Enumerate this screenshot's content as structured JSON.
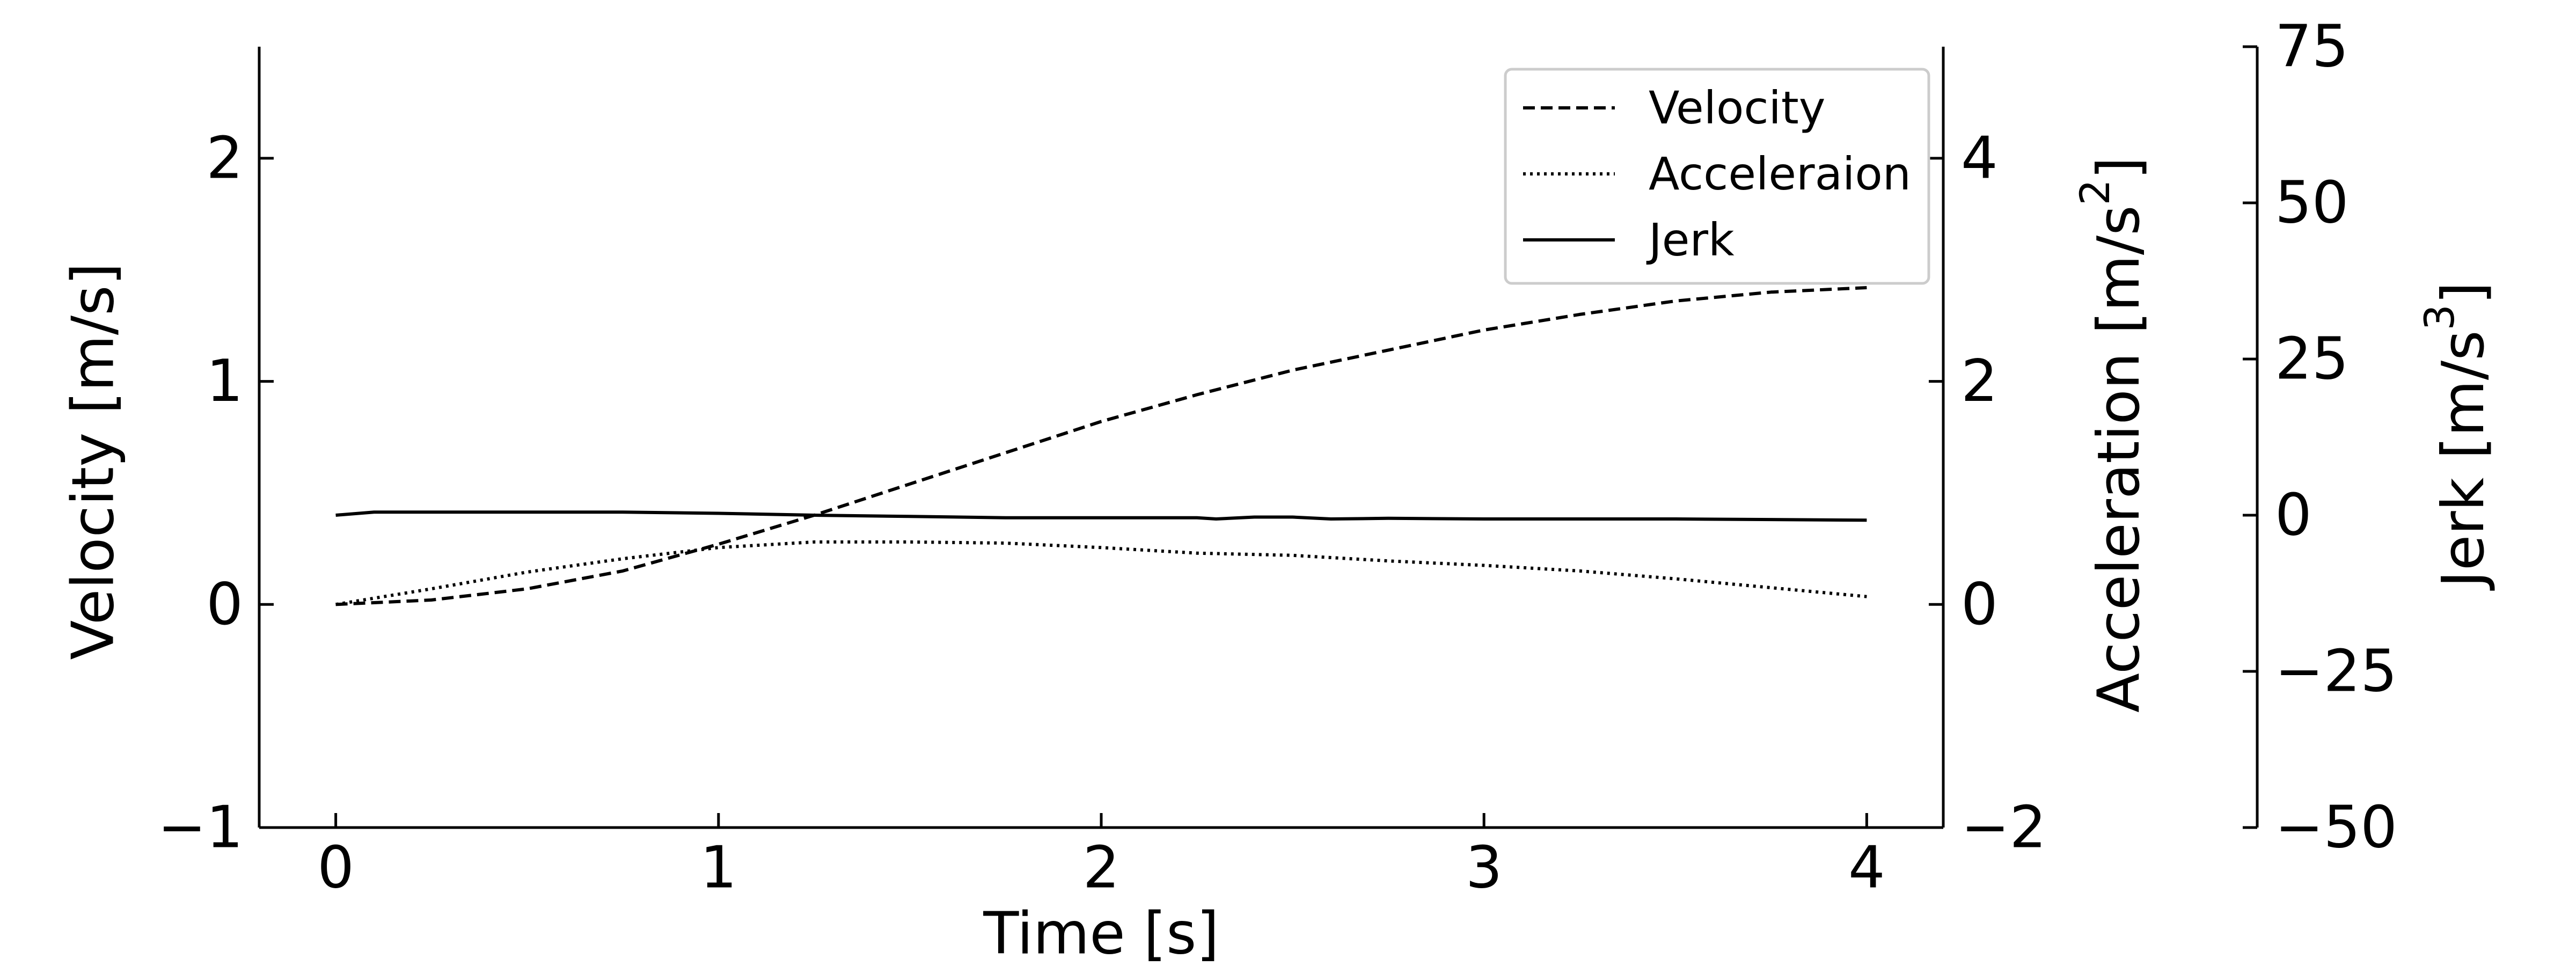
{
  "chart_data": {
    "type": "line",
    "title": "",
    "xlabel": "Time [s]",
    "ylabel_left": "Velocity [m/s]",
    "ylabel_right_1": {
      "text": "Acceleration [m/s",
      "sup": "2",
      "close": "]"
    },
    "ylabel_right_2": {
      "text": "Jerk [m/s",
      "sup": "3",
      "close": "]"
    },
    "xlim": [
      -0.2,
      4.2
    ],
    "ylim_velocity": [
      -1,
      2.5
    ],
    "ylim_acceleration": [
      -2,
      5
    ],
    "ylim_jerk": [
      -50,
      75
    ],
    "xticks": [
      0,
      1,
      2,
      3,
      4
    ],
    "xtick_labels": [
      "0",
      "1",
      "2",
      "3",
      "4"
    ],
    "velocity_ticks": [
      -1,
      0,
      1,
      2
    ],
    "velocity_tick_labels": [
      "−1",
      "0",
      "1",
      "2"
    ],
    "acceleration_ticks": [
      -2,
      0,
      2,
      4
    ],
    "acceleration_tick_labels": [
      "−2",
      "0",
      "2",
      "4"
    ],
    "jerk_ticks": [
      -50,
      -25,
      0,
      25,
      50,
      75
    ],
    "jerk_tick_labels": [
      "−50",
      "−25",
      "0",
      "25",
      "50",
      "75"
    ],
    "grid": false,
    "legend_position": "top-right",
    "colors": {
      "line": "#000000",
      "background": "#ffffff",
      "legend_border": "#cccccc"
    },
    "series": [
      {
        "name": "Velocity",
        "axis": "velocity",
        "style": "dashed",
        "x": [
          0,
          0.25,
          0.5,
          0.75,
          1.0,
          1.25,
          1.5,
          1.75,
          2.0,
          2.25,
          2.5,
          2.75,
          3.0,
          3.25,
          3.5,
          3.75,
          4.0
        ],
        "y": [
          0,
          0.02,
          0.07,
          0.15,
          0.27,
          0.4,
          0.54,
          0.68,
          0.82,
          0.94,
          1.05,
          1.14,
          1.23,
          1.3,
          1.36,
          1.4,
          1.42
        ]
      },
      {
        "name": "Acceleraion",
        "axis": "acceleration",
        "style": "dotted",
        "x": [
          0,
          0.25,
          0.5,
          0.75,
          1.0,
          1.25,
          1.5,
          1.75,
          2.0,
          2.25,
          2.5,
          2.75,
          3.0,
          3.25,
          3.5,
          3.75,
          4.0
        ],
        "y": [
          0,
          0.14,
          0.29,
          0.41,
          0.51,
          0.56,
          0.56,
          0.55,
          0.51,
          0.46,
          0.44,
          0.39,
          0.35,
          0.3,
          0.23,
          0.15,
          0.07
        ]
      },
      {
        "name": "Jerk",
        "axis": "jerk",
        "style": "solid",
        "x": [
          0,
          0.1,
          0.25,
          0.5,
          0.75,
          1.0,
          1.25,
          1.5,
          1.75,
          2.0,
          2.25,
          2.3,
          2.4,
          2.5,
          2.6,
          2.75,
          3.0,
          3.5,
          4.0
        ],
        "y": [
          0,
          0.5,
          0.5,
          0.5,
          0.5,
          0.3,
          0,
          -0.2,
          -0.4,
          -0.4,
          -0.4,
          -0.6,
          -0.3,
          -0.3,
          -0.6,
          -0.5,
          -0.6,
          -0.6,
          -0.8
        ]
      }
    ]
  }
}
